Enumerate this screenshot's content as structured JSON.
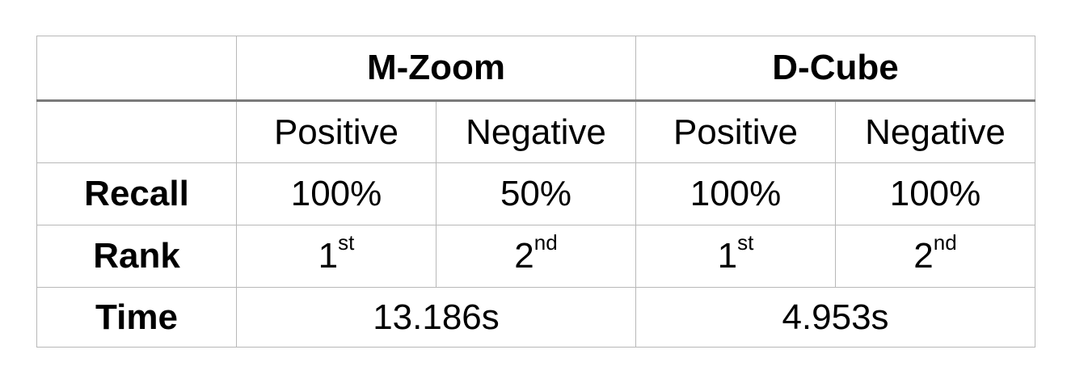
{
  "table": {
    "methods": [
      {
        "name": "M-Zoom",
        "time": "13.186s"
      },
      {
        "name": "D-Cube",
        "time": "4.953s"
      }
    ],
    "subheaders": [
      "Positive",
      "Negative",
      "Positive",
      "Negative"
    ],
    "row_labels": {
      "recall": "Recall",
      "rank": "Rank",
      "time": "Time"
    },
    "recall": [
      "100%",
      "50%",
      "100%",
      "100%"
    ],
    "rank": [
      {
        "num": "1",
        "suffix": "st"
      },
      {
        "num": "2",
        "suffix": "nd"
      },
      {
        "num": "1",
        "suffix": "st"
      },
      {
        "num": "2",
        "suffix": "nd"
      }
    ]
  }
}
